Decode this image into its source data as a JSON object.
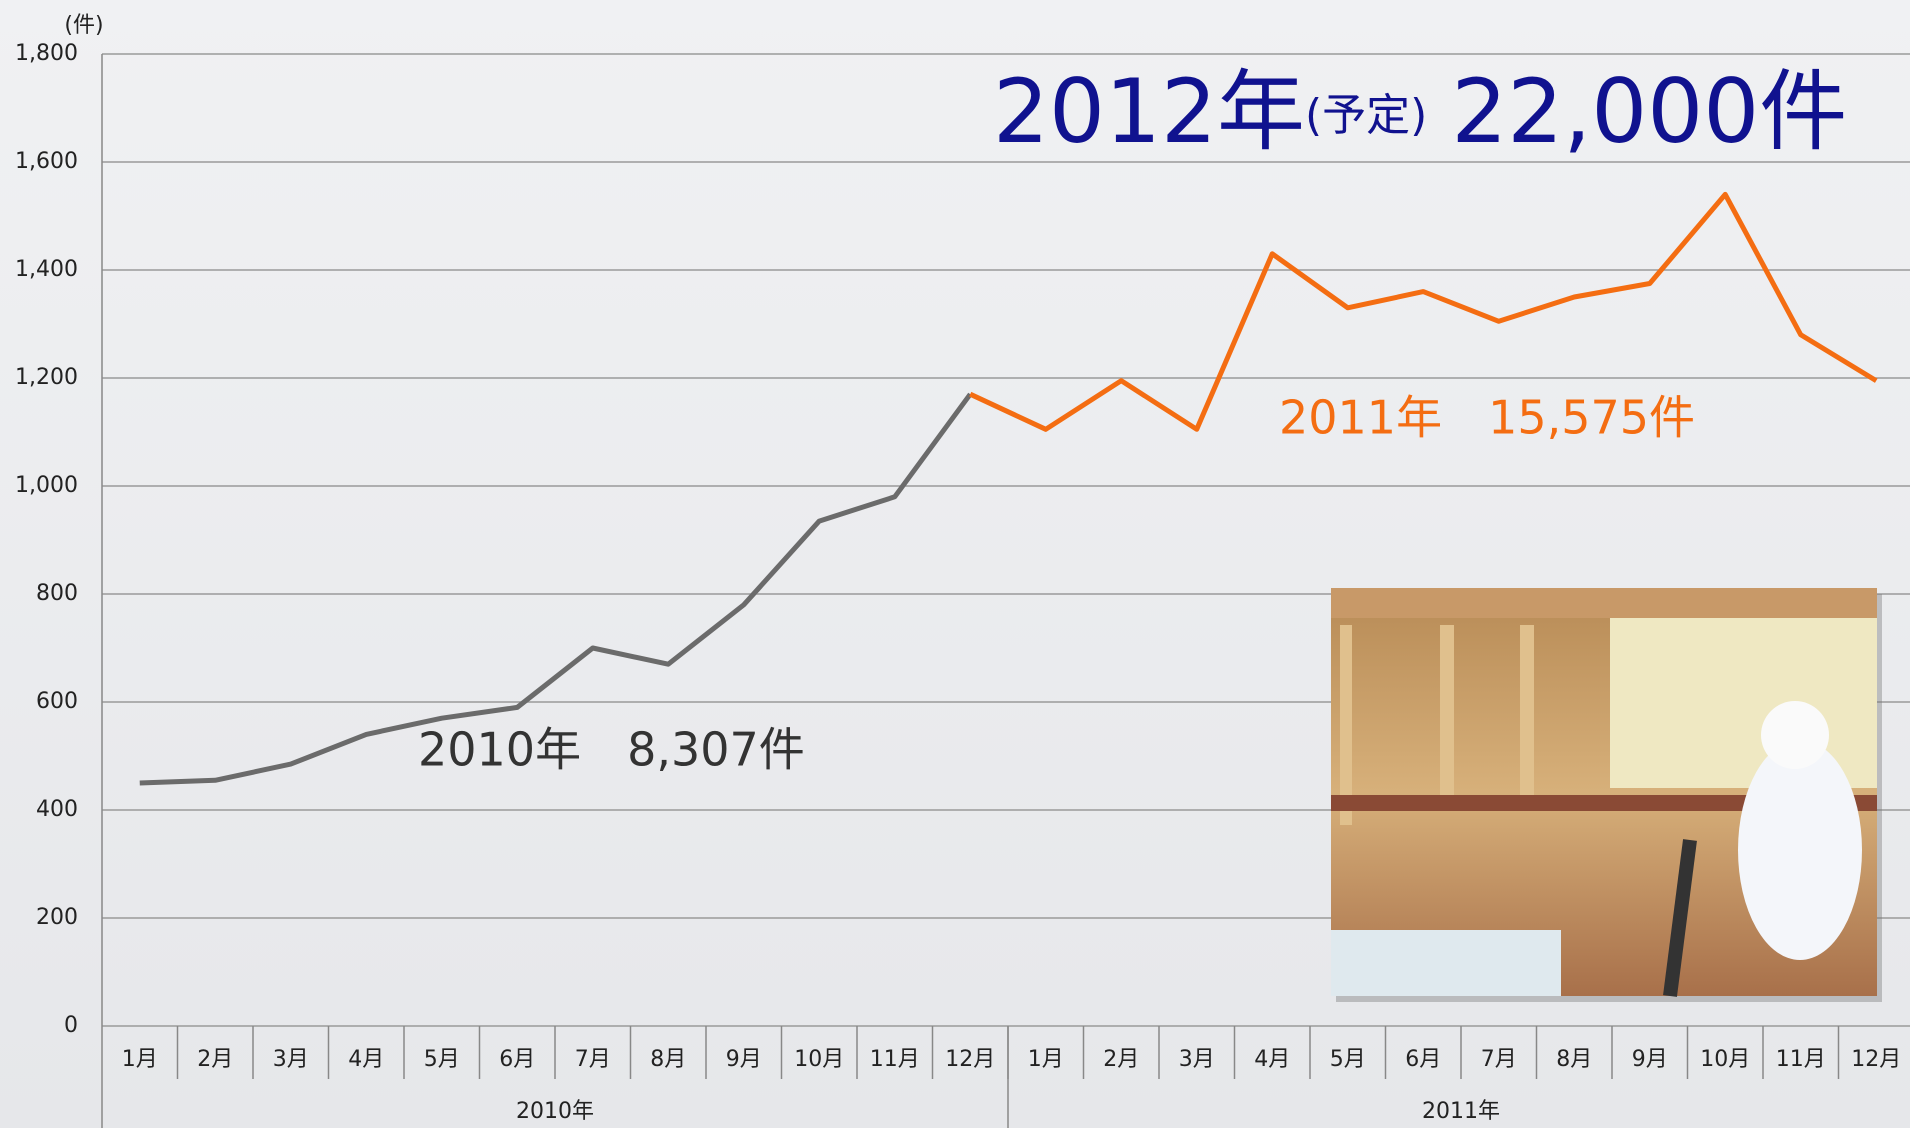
{
  "chart_data": {
    "type": "line",
    "y_unit_label": "(件)",
    "categories": [
      "1月",
      "2月",
      "3月",
      "4月",
      "5月",
      "6月",
      "7月",
      "8月",
      "9月",
      "10月",
      "11月",
      "12月",
      "1月",
      "2月",
      "3月",
      "4月",
      "5月",
      "6月",
      "7月",
      "8月",
      "9月",
      "10月",
      "11月",
      "12月"
    ],
    "groups": [
      {
        "label": "2010年",
        "span": 12
      },
      {
        "label": "2011年",
        "span": 12
      }
    ],
    "series": [
      {
        "name": "2010年",
        "color": "#6b6b6b",
        "values": [
          450,
          455,
          485,
          540,
          570,
          590,
          700,
          670,
          780,
          935,
          980,
          1170,
          null,
          null,
          null,
          null,
          null,
          null,
          null,
          null,
          null,
          null,
          null,
          null
        ]
      },
      {
        "name": "2011年",
        "color": "#f46d12",
        "values": [
          null,
          null,
          null,
          null,
          null,
          null,
          null,
          null,
          null,
          null,
          null,
          1170,
          1105,
          1195,
          1105,
          1430,
          1330,
          1360,
          1305,
          1350,
          1375,
          1540,
          1280,
          1195
        ]
      }
    ],
    "ylim": [
      0,
      1800
    ],
    "yticks": [
      0,
      200,
      400,
      600,
      800,
      {
        "value": 1000,
        "label": "1,000"
      },
      {
        "value": 1200,
        "label": "1,200"
      },
      {
        "value": 1400,
        "label": "1,400"
      },
      {
        "value": 1600,
        "label": "1,600"
      },
      {
        "value": 1800,
        "label": "1,800"
      }
    ],
    "grid": true,
    "headline": {
      "year": "2012年",
      "note": "(予定)",
      "count": "22,000件"
    },
    "annotations": [
      {
        "text": "2011年　15,575件",
        "color": "#f46d12"
      },
      {
        "text": "2010年　8,307件",
        "color": "#333333"
      }
    ]
  }
}
